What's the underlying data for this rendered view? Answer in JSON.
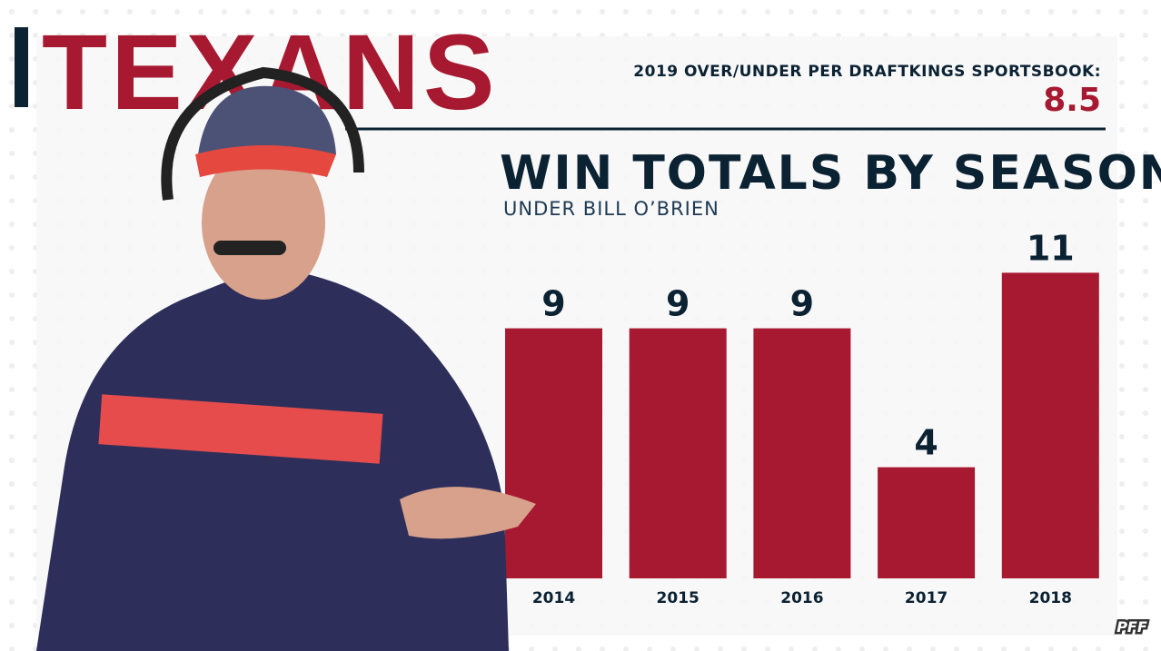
{
  "header": {
    "title": "TEXANS",
    "over_under_label": "2019 OVER/UNDER PER DRAFTKINGS SPORTSBOOK:",
    "over_under": 8.5
  },
  "chart_data": {
    "type": "bar",
    "title": "WIN TOTALS BY SEASON",
    "subtitle": "UNDER BILL O’BRIEN",
    "categories": [
      "2014",
      "2015",
      "2016",
      "2017",
      "2018"
    ],
    "values": [
      9,
      9,
      9,
      4,
      11
    ],
    "color": "#a71930"
  },
  "logo": "PFF"
}
